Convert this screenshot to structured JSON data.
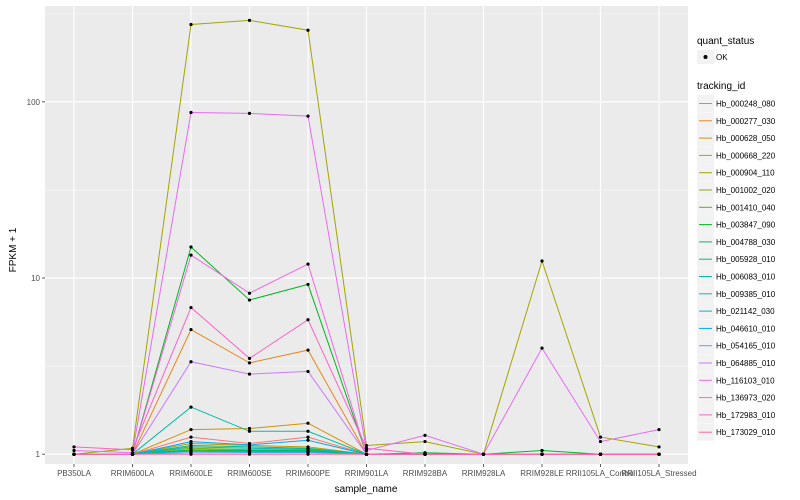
{
  "chart_data": {
    "type": "line",
    "xlabel": "sample_name",
    "ylabel": "FPKM + 1",
    "y_scale": "log10",
    "y_ticks": [
      1,
      10,
      100
    ],
    "y_tick_labels": [
      "1",
      "10",
      "100"
    ],
    "ylim": [
      0.88,
      350
    ],
    "categories": [
      "PB350LA",
      "RRIM600LA",
      "RRIM600LE",
      "RRIM600SE",
      "RRIM600PE",
      "RRIM901LA",
      "RRIM928BA",
      "RRIM928LA",
      "RRIM928LE",
      "RRII105LA_Control",
      "RRII105LA_Stressed"
    ],
    "legend_shape": {
      "title": "quant_status",
      "label": "OK"
    },
    "legend_color": {
      "title": "tracking_id"
    },
    "series": [
      {
        "name": "Hb_000248_080",
        "color": "#F8766D",
        "values": [
          1.0,
          1.0,
          1.25,
          1.15,
          1.25,
          1.0,
          1.0,
          1.0,
          1.0,
          1.0,
          1.0
        ]
      },
      {
        "name": "Hb_000277_030",
        "color": "#E7861B",
        "values": [
          1.0,
          1.0,
          5.1,
          3.3,
          3.9,
          1.0,
          1.0,
          1.0,
          1.0,
          1.0,
          1.0
        ]
      },
      {
        "name": "Hb_000628_050",
        "color": "#D39200",
        "values": [
          1.0,
          1.0,
          1.38,
          1.4,
          1.5,
          1.0,
          1.0,
          1.0,
          1.0,
          1.0,
          1.0
        ]
      },
      {
        "name": "Hb_000668_220",
        "color": "#BB9D00",
        "values": [
          1.0,
          1.0,
          1.15,
          1.12,
          1.1,
          1.0,
          1.0,
          1.0,
          1.0,
          1.0,
          1.0
        ]
      },
      {
        "name": "Hb_000904_110",
        "color": "#A3A500",
        "values": [
          1.0,
          1.08,
          275,
          290,
          255,
          1.12,
          1.18,
          1.0,
          12.5,
          1.25,
          1.1
        ]
      },
      {
        "name": "Hb_001002_020",
        "color": "#85AD00",
        "values": [
          1.0,
          1.0,
          1.08,
          1.06,
          1.06,
          1.0,
          1.0,
          1.0,
          1.0,
          1.0,
          1.0
        ]
      },
      {
        "name": "Hb_001410_040",
        "color": "#5BB300",
        "values": [
          1.0,
          1.0,
          1.05,
          1.04,
          1.04,
          1.0,
          1.0,
          1.0,
          1.0,
          1.0,
          1.0
        ]
      },
      {
        "name": "Hb_003847_090",
        "color": "#00B81F",
        "values": [
          1.0,
          1.0,
          15.0,
          7.5,
          9.2,
          1.0,
          1.02,
          1.0,
          1.05,
          1.0,
          1.0
        ]
      },
      {
        "name": "Hb_004788_030",
        "color": "#00BC59",
        "values": [
          1.0,
          1.0,
          1.06,
          1.05,
          1.05,
          1.0,
          1.0,
          1.0,
          1.0,
          1.0,
          1.0
        ]
      },
      {
        "name": "Hb_005928_010",
        "color": "#00BE82",
        "values": [
          1.0,
          1.0,
          1.12,
          1.1,
          1.08,
          1.0,
          1.0,
          1.0,
          1.0,
          1.0,
          1.0
        ]
      },
      {
        "name": "Hb_006083_010",
        "color": "#00BFA4",
        "values": [
          1.0,
          1.0,
          1.85,
          1.35,
          1.35,
          1.0,
          1.0,
          1.0,
          1.0,
          1.0,
          1.0
        ]
      },
      {
        "name": "Hb_009385_010",
        "color": "#00BCC1",
        "values": [
          1.0,
          1.0,
          1.1,
          1.08,
          1.07,
          1.0,
          1.0,
          1.0,
          1.0,
          1.0,
          1.0
        ]
      },
      {
        "name": "Hb_021142_030",
        "color": "#00B4DA",
        "values": [
          1.0,
          1.0,
          1.04,
          1.03,
          1.03,
          1.0,
          1.0,
          1.0,
          1.0,
          1.0,
          1.0
        ]
      },
      {
        "name": "Hb_046610_010",
        "color": "#00A9EF",
        "values": [
          1.0,
          1.0,
          1.18,
          1.13,
          1.2,
          1.0,
          1.0,
          1.0,
          1.0,
          1.0,
          1.0
        ]
      },
      {
        "name": "Hb_054165_010",
        "color": "#619CFF",
        "values": [
          1.0,
          1.0,
          1.02,
          1.02,
          1.02,
          1.0,
          1.0,
          1.0,
          1.0,
          1.0,
          1.0
        ]
      },
      {
        "name": "Hb_064885_010",
        "color": "#C77CFF",
        "values": [
          1.0,
          1.0,
          3.35,
          2.85,
          2.95,
          1.0,
          1.0,
          1.0,
          1.0,
          1.0,
          1.0
        ]
      },
      {
        "name": "Hb_116103_010",
        "color": "#E76BF3",
        "values": [
          1.05,
          1.02,
          87,
          86,
          83,
          1.05,
          1.28,
          1.0,
          4.0,
          1.18,
          1.38
        ]
      },
      {
        "name": "Hb_136973_020",
        "color": "#F564E3",
        "values": [
          1.0,
          1.0,
          13.5,
          8.2,
          12.0,
          1.0,
          1.0,
          1.0,
          1.0,
          1.0,
          1.0
        ]
      },
      {
        "name": "Hb_172983_010",
        "color": "#FF61C3",
        "values": [
          1.1,
          1.06,
          6.8,
          3.5,
          5.8,
          1.08,
          1.0,
          1.0,
          1.0,
          1.0,
          1.0
        ]
      },
      {
        "name": "Hb_173029_010",
        "color": "#FF689F",
        "values": [
          1.0,
          1.0,
          1.0,
          1.0,
          1.0,
          1.0,
          1.0,
          1.0,
          1.0,
          1.0,
          1.0
        ]
      }
    ]
  }
}
